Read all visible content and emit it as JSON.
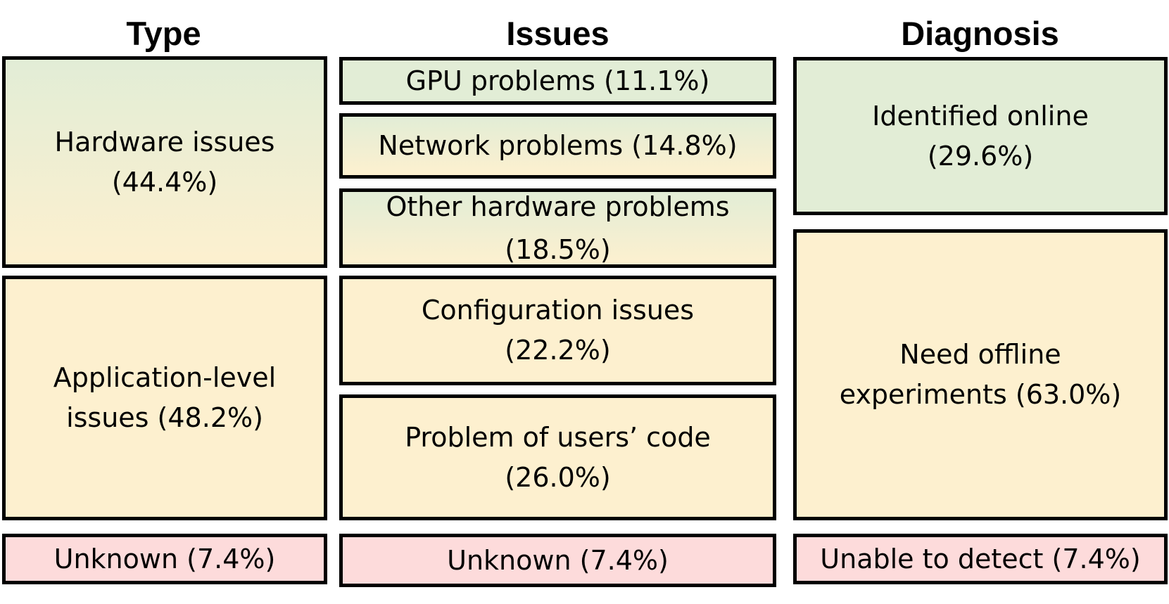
{
  "headers": {
    "type": "Type",
    "issues": "Issues",
    "diagnosis": "Diagnosis"
  },
  "type": {
    "hardware": {
      "line1": "Hardware issues",
      "line2": "(44.4%)"
    },
    "application": {
      "line1": "Application-level",
      "line2": "issues (48.2%)"
    },
    "unknown": {
      "line1": "Unknown (7.4%)"
    }
  },
  "issues": {
    "gpu": {
      "line1": "GPU problems (11.1%)"
    },
    "network": {
      "line1": "Network problems (14.8%)"
    },
    "other_hw": {
      "line1": "Other hardware problems",
      "line2": "(18.5%)"
    },
    "config": {
      "line1": "Configuration issues",
      "line2": "(22.2%)"
    },
    "user_code": {
      "line1": "Problem of users’ code",
      "line2": "(26.0%)"
    },
    "unknown": {
      "line1": "Unknown (7.4%)"
    }
  },
  "diagnosis": {
    "online": {
      "line1": "Identified online",
      "line2": "(29.6%)"
    },
    "offline": {
      "line1": "Need offline",
      "line2": "experiments (63.0%)"
    },
    "undetected": {
      "line1": "Unable to detect (7.4%)"
    }
  }
}
